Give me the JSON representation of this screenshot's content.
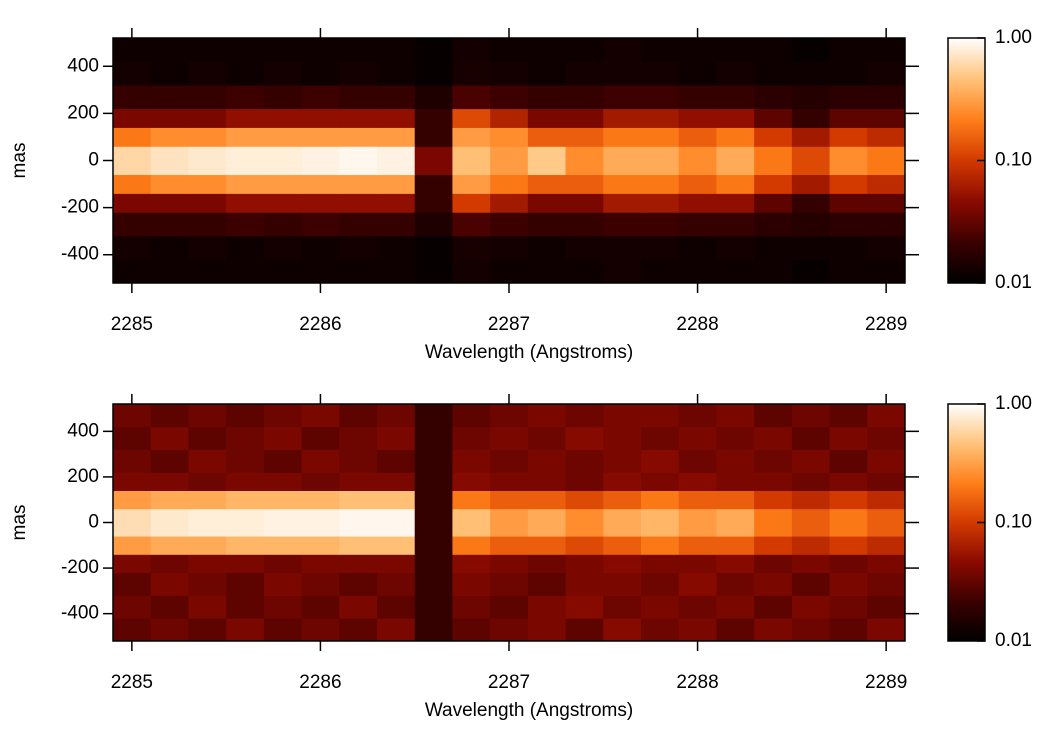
{
  "chart_data": [
    {
      "type": "heatmap",
      "xlabel": "Wavelength (Angstroms)",
      "ylabel": "mas",
      "xlim": [
        2284.9,
        2289.1
      ],
      "ylim": [
        -520,
        520
      ],
      "xticks": [
        2285,
        2286,
        2287,
        2288,
        2289
      ],
      "yticks": [
        -400,
        -200,
        0,
        200,
        400
      ],
      "x_bins": [
        2284.9,
        2285.1,
        2285.3,
        2285.5,
        2285.7,
        2285.9,
        2286.1,
        2286.3,
        2286.5,
        2286.7,
        2286.9,
        2287.1,
        2287.3,
        2287.5,
        2287.7,
        2287.9,
        2288.1,
        2288.3,
        2288.5,
        2288.7,
        2288.9,
        2289.1
      ],
      "y_bins": [
        -520,
        -420,
        -320,
        -220,
        -140,
        -60,
        60,
        140,
        220,
        320,
        420,
        520
      ],
      "values": [
        [
          0.012,
          0.012,
          0.012,
          0.012,
          0.012,
          0.012,
          0.012,
          0.012,
          0.011,
          0.013,
          0.012,
          0.012,
          0.012,
          0.013,
          0.012,
          0.012,
          0.012,
          0.012,
          0.011,
          0.012,
          0.012
        ],
        [
          0.013,
          0.012,
          0.013,
          0.012,
          0.013,
          0.012,
          0.013,
          0.012,
          0.011,
          0.014,
          0.013,
          0.012,
          0.013,
          0.013,
          0.013,
          0.012,
          0.013,
          0.012,
          0.012,
          0.012,
          0.013
        ],
        [
          0.02,
          0.02,
          0.02,
          0.022,
          0.02,
          0.022,
          0.02,
          0.02,
          0.015,
          0.025,
          0.022,
          0.02,
          0.02,
          0.022,
          0.022,
          0.02,
          0.02,
          0.018,
          0.016,
          0.018,
          0.018
        ],
        [
          0.04,
          0.04,
          0.04,
          0.05,
          0.05,
          0.05,
          0.05,
          0.05,
          0.02,
          0.1,
          0.06,
          0.04,
          0.04,
          0.06,
          0.06,
          0.05,
          0.05,
          0.03,
          0.02,
          0.03,
          0.03
        ],
        [
          0.2,
          0.25,
          0.25,
          0.3,
          0.3,
          0.3,
          0.3,
          0.3,
          0.02,
          0.3,
          0.2,
          0.15,
          0.15,
          0.2,
          0.2,
          0.15,
          0.2,
          0.1,
          0.06,
          0.1,
          0.08
        ],
        [
          0.6,
          0.7,
          0.75,
          0.8,
          0.8,
          0.85,
          0.9,
          0.85,
          0.04,
          0.45,
          0.3,
          0.5,
          0.25,
          0.35,
          0.35,
          0.25,
          0.35,
          0.2,
          0.12,
          0.25,
          0.2
        ],
        [
          0.2,
          0.25,
          0.25,
          0.3,
          0.3,
          0.3,
          0.3,
          0.3,
          0.02,
          0.3,
          0.25,
          0.15,
          0.15,
          0.2,
          0.2,
          0.15,
          0.2,
          0.1,
          0.06,
          0.1,
          0.08
        ],
        [
          0.04,
          0.04,
          0.04,
          0.05,
          0.05,
          0.05,
          0.05,
          0.05,
          0.02,
          0.12,
          0.07,
          0.04,
          0.04,
          0.06,
          0.06,
          0.05,
          0.05,
          0.03,
          0.02,
          0.03,
          0.03
        ],
        [
          0.02,
          0.02,
          0.02,
          0.022,
          0.02,
          0.022,
          0.02,
          0.02,
          0.015,
          0.025,
          0.022,
          0.02,
          0.02,
          0.022,
          0.022,
          0.02,
          0.02,
          0.018,
          0.016,
          0.018,
          0.018
        ],
        [
          0.013,
          0.012,
          0.013,
          0.012,
          0.013,
          0.012,
          0.013,
          0.012,
          0.011,
          0.014,
          0.013,
          0.012,
          0.013,
          0.013,
          0.013,
          0.012,
          0.013,
          0.012,
          0.012,
          0.012,
          0.013
        ],
        [
          0.012,
          0.012,
          0.012,
          0.012,
          0.012,
          0.012,
          0.012,
          0.012,
          0.011,
          0.013,
          0.012,
          0.012,
          0.012,
          0.013,
          0.012,
          0.012,
          0.012,
          0.012,
          0.011,
          0.012,
          0.012
        ]
      ],
      "colorbar": {
        "scale": "log",
        "lim": [
          0.01,
          1
        ],
        "ticks": [
          0.01,
          {
            "value": 0.1,
            "label": "0.10"
          },
          {
            "value": 1,
            "label": "1.00"
          }
        ],
        "colormap": [
          "#000000",
          "#3a0000",
          "#8a0a00",
          "#d23a00",
          "#ff7f1a",
          "#ffc37a",
          "#ffffff"
        ]
      }
    },
    {
      "type": "heatmap",
      "xlabel": "Wavelength (Angstroms)",
      "ylabel": "mas",
      "xlim": [
        2284.9,
        2289.1
      ],
      "ylim": [
        -520,
        520
      ],
      "xticks": [
        2285,
        2286,
        2287,
        2288,
        2289
      ],
      "yticks": [
        -400,
        -200,
        0,
        200,
        400
      ],
      "x_bins": [
        2284.9,
        2285.1,
        2285.3,
        2285.5,
        2285.7,
        2285.9,
        2286.1,
        2286.3,
        2286.5,
        2286.7,
        2286.9,
        2287.1,
        2287.3,
        2287.5,
        2287.7,
        2287.9,
        2288.1,
        2288.3,
        2288.5,
        2288.7,
        2288.9,
        2289.1
      ],
      "y_bins": [
        -520,
        -420,
        -320,
        -220,
        -140,
        -60,
        60,
        140,
        220,
        320,
        420,
        520
      ],
      "values": [
        [
          0.03,
          0.035,
          0.03,
          0.04,
          0.03,
          0.035,
          0.03,
          0.04,
          0.02,
          0.03,
          0.035,
          0.04,
          0.03,
          0.045,
          0.035,
          0.04,
          0.03,
          0.04,
          0.035,
          0.03,
          0.04
        ],
        [
          0.035,
          0.03,
          0.04,
          0.03,
          0.035,
          0.03,
          0.04,
          0.03,
          0.02,
          0.035,
          0.03,
          0.04,
          0.045,
          0.035,
          0.04,
          0.035,
          0.04,
          0.03,
          0.04,
          0.035,
          0.03
        ],
        [
          0.03,
          0.04,
          0.035,
          0.03,
          0.04,
          0.035,
          0.03,
          0.035,
          0.02,
          0.04,
          0.035,
          0.03,
          0.04,
          0.04,
          0.035,
          0.045,
          0.035,
          0.04,
          0.03,
          0.04,
          0.035
        ],
        [
          0.04,
          0.035,
          0.04,
          0.04,
          0.035,
          0.04,
          0.04,
          0.04,
          0.02,
          0.045,
          0.04,
          0.035,
          0.04,
          0.045,
          0.04,
          0.04,
          0.045,
          0.035,
          0.04,
          0.035,
          0.04
        ],
        [
          0.3,
          0.35,
          0.35,
          0.4,
          0.4,
          0.4,
          0.45,
          0.45,
          0.02,
          0.2,
          0.15,
          0.15,
          0.12,
          0.15,
          0.2,
          0.15,
          0.15,
          0.1,
          0.08,
          0.1,
          0.08
        ],
        [
          0.65,
          0.75,
          0.8,
          0.8,
          0.85,
          0.85,
          0.9,
          0.9,
          0.02,
          0.45,
          0.3,
          0.35,
          0.25,
          0.35,
          0.4,
          0.3,
          0.35,
          0.2,
          0.15,
          0.2,
          0.15
        ],
        [
          0.3,
          0.35,
          0.35,
          0.4,
          0.4,
          0.4,
          0.45,
          0.45,
          0.02,
          0.2,
          0.15,
          0.15,
          0.12,
          0.15,
          0.2,
          0.15,
          0.15,
          0.1,
          0.08,
          0.1,
          0.08
        ],
        [
          0.04,
          0.04,
          0.035,
          0.04,
          0.04,
          0.035,
          0.04,
          0.04,
          0.02,
          0.045,
          0.04,
          0.04,
          0.035,
          0.045,
          0.04,
          0.045,
          0.04,
          0.04,
          0.035,
          0.04,
          0.035
        ],
        [
          0.035,
          0.03,
          0.04,
          0.035,
          0.03,
          0.04,
          0.035,
          0.03,
          0.02,
          0.04,
          0.035,
          0.04,
          0.035,
          0.04,
          0.045,
          0.035,
          0.04,
          0.035,
          0.04,
          0.03,
          0.04
        ],
        [
          0.03,
          0.04,
          0.03,
          0.035,
          0.04,
          0.03,
          0.035,
          0.04,
          0.02,
          0.035,
          0.04,
          0.035,
          0.045,
          0.04,
          0.035,
          0.04,
          0.035,
          0.04,
          0.03,
          0.04,
          0.035
        ],
        [
          0.035,
          0.03,
          0.035,
          0.03,
          0.035,
          0.04,
          0.03,
          0.035,
          0.02,
          0.03,
          0.035,
          0.04,
          0.035,
          0.04,
          0.04,
          0.035,
          0.04,
          0.03,
          0.035,
          0.03,
          0.04
        ]
      ],
      "colorbar": {
        "scale": "log",
        "lim": [
          0.01,
          1
        ],
        "ticks": [
          0.01,
          {
            "value": 0.1,
            "label": "0.10"
          },
          {
            "value": 1,
            "label": "1.00"
          }
        ],
        "colormap": [
          "#000000",
          "#3a0000",
          "#8a0a00",
          "#d23a00",
          "#ff7f1a",
          "#ffc37a",
          "#ffffff"
        ]
      }
    }
  ]
}
